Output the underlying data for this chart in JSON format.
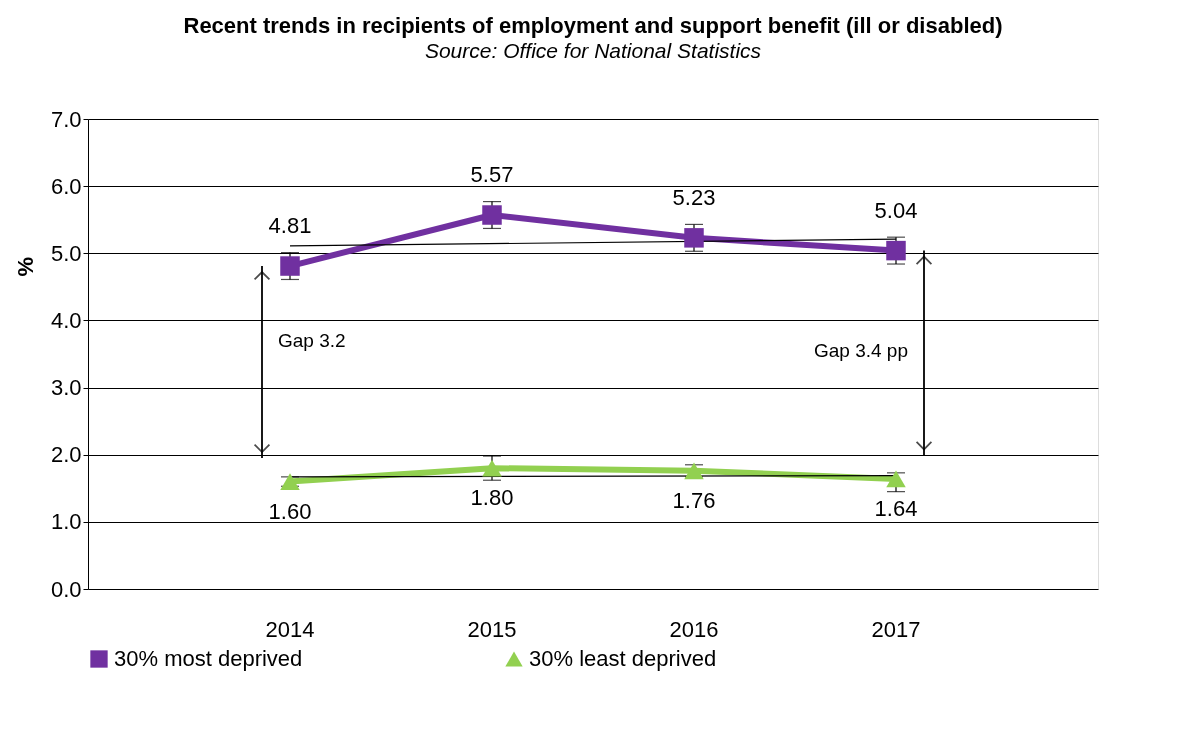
{
  "chart_data": {
    "type": "line",
    "title": "Recent trends in recipients of employment and support benefit (ill or disabled)",
    "subtitle": "Source: Office for National Statistics",
    "ylabel": "%",
    "categories": [
      "2014",
      "2015",
      "2016",
      "2017"
    ],
    "series": [
      {
        "name": "30% most deprived",
        "color": "#7030a0",
        "marker": "square",
        "values": [
          4.81,
          5.57,
          5.23,
          5.04
        ],
        "value_labels": [
          "4.81",
          "5.57",
          "5.23",
          "5.04"
        ],
        "errors": [
          0.2,
          0.2,
          0.2,
          0.2
        ]
      },
      {
        "name": "30% least deprived",
        "color": "#92d050",
        "marker": "triangle",
        "values": [
          1.6,
          1.8,
          1.76,
          1.64
        ],
        "value_labels": [
          "1.60",
          "1.80",
          "1.76",
          "1.64"
        ],
        "errors": [
          0.07,
          0.18,
          0.09,
          [
            1.45,
            1.73
          ]
        ]
      },
      {
        "type": "line",
        "color": "#000000",
        "marker": "none",
        "values": [
          5.11,
          null,
          null,
          5.21
        ]
      },
      {
        "type": "line",
        "color": "#000000",
        "marker": "none",
        "values": [
          1.67,
          null,
          null,
          1.69
        ]
      }
    ],
    "ylim": [
      0,
      7
    ],
    "yticks": [
      {
        "value": 0,
        "label": "0.0"
      },
      {
        "value": 1,
        "label": "1.0"
      },
      {
        "value": 2,
        "label": "2.0"
      },
      {
        "value": 3,
        "label": "3.0"
      },
      {
        "value": 4,
        "label": "4.0"
      },
      {
        "value": 5,
        "label": "5.0"
      },
      {
        "value": 6,
        "label": "6.0"
      },
      {
        "value": 7,
        "label": "7.0"
      }
    ],
    "grid": "y",
    "legend": "bottom",
    "annotations": [
      "Gap 3.2",
      "Gap 3.4 pp"
    ]
  }
}
